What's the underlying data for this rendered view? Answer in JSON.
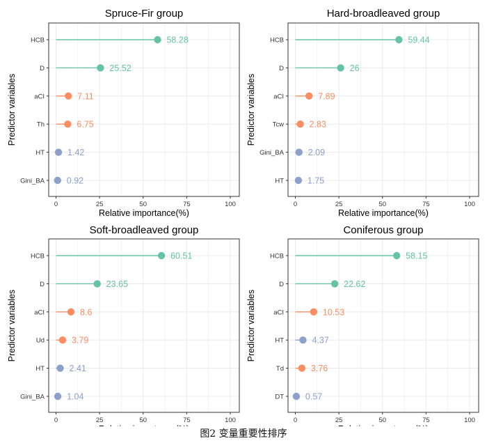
{
  "caption": "图2  变量重要性排序",
  "colors": {
    "green": "#66c2a5",
    "orange": "#fc8d62",
    "blue": "#8da0cb",
    "grid": "#ebebeb",
    "panel_border": "#333333",
    "axis_text": "#333333"
  },
  "chart_data": [
    {
      "type": "lollipop",
      "title": "Spruce-Fir group",
      "xlabel": "Relative importance(%)",
      "ylabel": "Predictor variables",
      "xlim": [
        0,
        100
      ],
      "xticks": [
        0,
        25,
        50,
        75,
        100
      ],
      "grid": true,
      "categories": [
        "HCB",
        "D",
        "aCI",
        "Th",
        "HT",
        "Gini_BA"
      ],
      "values": [
        58.28,
        25.52,
        7.11,
        6.75,
        1.42,
        0.92
      ],
      "labels": [
        "58.28",
        "25.52",
        "7.11",
        "6.75",
        "1.42",
        "0.92"
      ],
      "colors": [
        "#66c2a5",
        "#66c2a5",
        "#fc8d62",
        "#fc8d62",
        "#8da0cb",
        "#8da0cb"
      ]
    },
    {
      "type": "lollipop",
      "title": "Hard-broadleaved group",
      "xlabel": "Relative importance(%)",
      "ylabel": "Predictor variables",
      "xlim": [
        0,
        100
      ],
      "xticks": [
        0,
        25,
        50,
        75,
        100
      ],
      "grid": true,
      "categories": [
        "HCB",
        "D",
        "aCI",
        "Tcw",
        "Gini_BA",
        "HT"
      ],
      "values": [
        59.44,
        26,
        7.89,
        2.83,
        2.09,
        1.75
      ],
      "labels": [
        "59.44",
        "26",
        "7.89",
        "2.83",
        "2.09",
        "1.75"
      ],
      "colors": [
        "#66c2a5",
        "#66c2a5",
        "#fc8d62",
        "#fc8d62",
        "#8da0cb",
        "#8da0cb"
      ]
    },
    {
      "type": "lollipop",
      "title": "Soft-broadleaved group",
      "xlabel": "Relative importance(%)",
      "ylabel": "Predictor variables",
      "xlim": [
        0,
        100
      ],
      "xticks": [
        0,
        25,
        50,
        75,
        100
      ],
      "grid": true,
      "categories": [
        "HCB",
        "D",
        "aCI",
        "Ud",
        "HT",
        "Gini_BA"
      ],
      "values": [
        60.51,
        23.65,
        8.6,
        3.79,
        2.41,
        1.04
      ],
      "labels": [
        "60.51",
        "23.65",
        "8.6",
        "3.79",
        "2.41",
        "1.04"
      ],
      "colors": [
        "#66c2a5",
        "#66c2a5",
        "#fc8d62",
        "#fc8d62",
        "#8da0cb",
        "#8da0cb"
      ]
    },
    {
      "type": "lollipop",
      "title": "Coniferous group",
      "xlabel": "Relative importance(%)",
      "ylabel": "Predictor variables",
      "xlim": [
        0,
        100
      ],
      "xticks": [
        0,
        25,
        50,
        75,
        100
      ],
      "grid": true,
      "categories": [
        "HCB",
        "D",
        "aCI",
        "HT",
        "Td",
        "DT"
      ],
      "values": [
        58.15,
        22.62,
        10.53,
        4.37,
        3.76,
        0.57
      ],
      "labels": [
        "58.15",
        "22.62",
        "10.53",
        "4.37",
        "3.76",
        "0.57"
      ],
      "colors": [
        "#66c2a5",
        "#66c2a5",
        "#fc8d62",
        "#8da0cb",
        "#fc8d62",
        "#8da0cb"
      ]
    }
  ]
}
